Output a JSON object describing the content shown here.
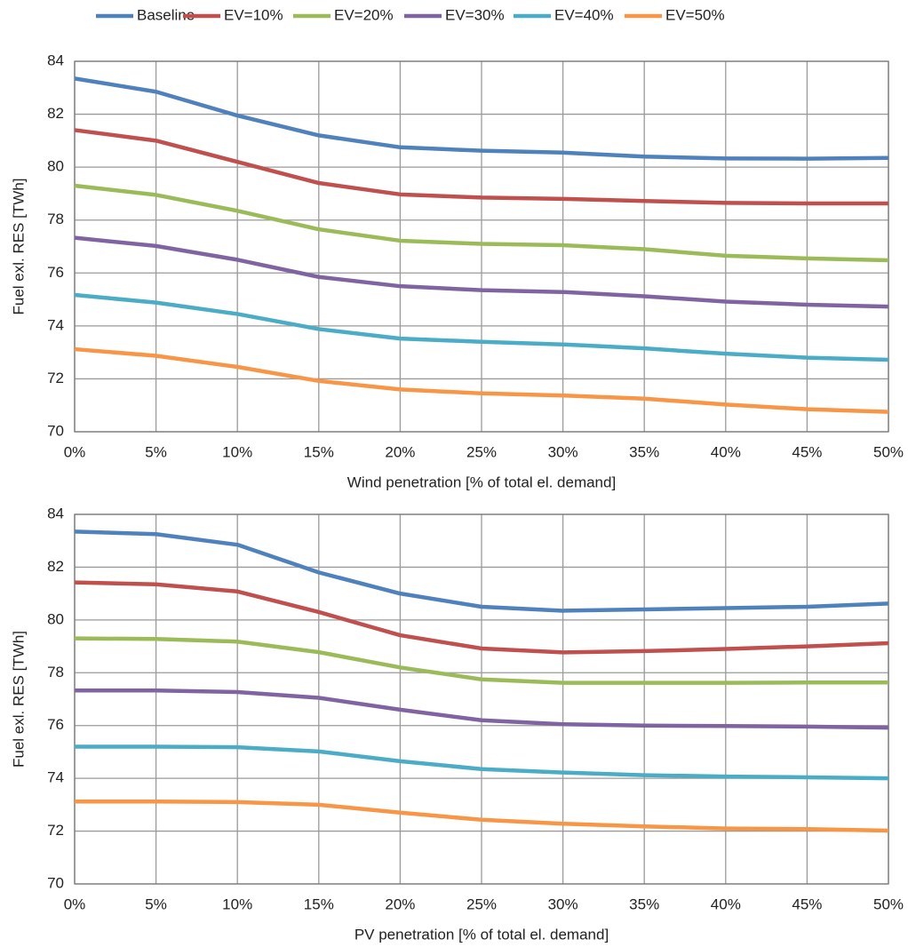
{
  "chart_data": [
    {
      "type": "line",
      "x_label": "Wind penetration [% of total el. demand]",
      "y_label": "Fuel exl. RES [TWh]",
      "categories": [
        "0%",
        "5%",
        "10%",
        "15%",
        "20%",
        "25%",
        "30%",
        "35%",
        "40%",
        "45%",
        "50%"
      ],
      "ylim": [
        70,
        84
      ],
      "yticks": [
        70,
        72,
        74,
        76,
        78,
        80,
        82,
        84
      ],
      "grid": true,
      "series": [
        {
          "name": "Baseline",
          "color": "#4f81bd",
          "values": [
            83.35,
            82.85,
            81.95,
            81.2,
            80.75,
            80.62,
            80.55,
            80.4,
            80.33,
            80.32,
            80.35
          ]
        },
        {
          "name": "EV=10%",
          "color": "#c0504d",
          "values": [
            81.4,
            81.0,
            80.2,
            79.4,
            78.97,
            78.85,
            78.8,
            78.72,
            78.65,
            78.63,
            78.63
          ]
        },
        {
          "name": "EV=20%",
          "color": "#9bbb59",
          "values": [
            79.3,
            78.95,
            78.35,
            77.65,
            77.22,
            77.1,
            77.05,
            76.9,
            76.65,
            76.55,
            76.48
          ]
        },
        {
          "name": "EV=30%",
          "color": "#8064a2",
          "values": [
            77.33,
            77.02,
            76.5,
            75.85,
            75.5,
            75.35,
            75.28,
            75.12,
            74.92,
            74.8,
            74.73
          ]
        },
        {
          "name": "EV=40%",
          "color": "#4bacc6",
          "values": [
            75.17,
            74.88,
            74.45,
            73.88,
            73.52,
            73.4,
            73.3,
            73.15,
            72.95,
            72.8,
            72.72
          ]
        },
        {
          "name": "EV=50%",
          "color": "#f79646",
          "values": [
            73.12,
            72.87,
            72.45,
            71.92,
            71.6,
            71.45,
            71.37,
            71.25,
            71.03,
            70.85,
            70.75
          ]
        }
      ]
    },
    {
      "type": "line",
      "x_label": "PV penetration [% of total el. demand]",
      "y_label": "Fuel exl. RES [TWh]",
      "categories": [
        "0%",
        "5%",
        "10%",
        "15%",
        "20%",
        "25%",
        "30%",
        "35%",
        "40%",
        "45%",
        "50%"
      ],
      "ylim": [
        70,
        84
      ],
      "yticks": [
        70,
        72,
        74,
        76,
        78,
        80,
        82,
        84
      ],
      "grid": true,
      "series": [
        {
          "color": "#4f81bd",
          "values": [
            83.35,
            83.25,
            82.85,
            81.8,
            81.0,
            80.5,
            80.35,
            80.4,
            80.45,
            80.5,
            80.62
          ]
        },
        {
          "color": "#c0504d",
          "values": [
            81.42,
            81.35,
            81.08,
            80.3,
            79.42,
            78.92,
            78.77,
            78.82,
            78.9,
            79.0,
            79.12
          ]
        },
        {
          "color": "#9bbb59",
          "values": [
            79.3,
            79.28,
            79.18,
            78.78,
            78.2,
            77.75,
            77.62,
            77.62,
            77.62,
            77.63,
            77.63
          ]
        },
        {
          "color": "#8064a2",
          "values": [
            77.33,
            77.33,
            77.27,
            77.05,
            76.6,
            76.2,
            76.05,
            76.0,
            75.98,
            75.96,
            75.92
          ]
        },
        {
          "color": "#4bacc6",
          "values": [
            75.2,
            75.2,
            75.18,
            75.02,
            74.65,
            74.35,
            74.22,
            74.12,
            74.07,
            74.04,
            74.0
          ]
        },
        {
          "color": "#f79646",
          "values": [
            73.12,
            73.12,
            73.1,
            73.0,
            72.7,
            72.43,
            72.28,
            72.18,
            72.1,
            72.08,
            72.02
          ]
        }
      ]
    }
  ]
}
